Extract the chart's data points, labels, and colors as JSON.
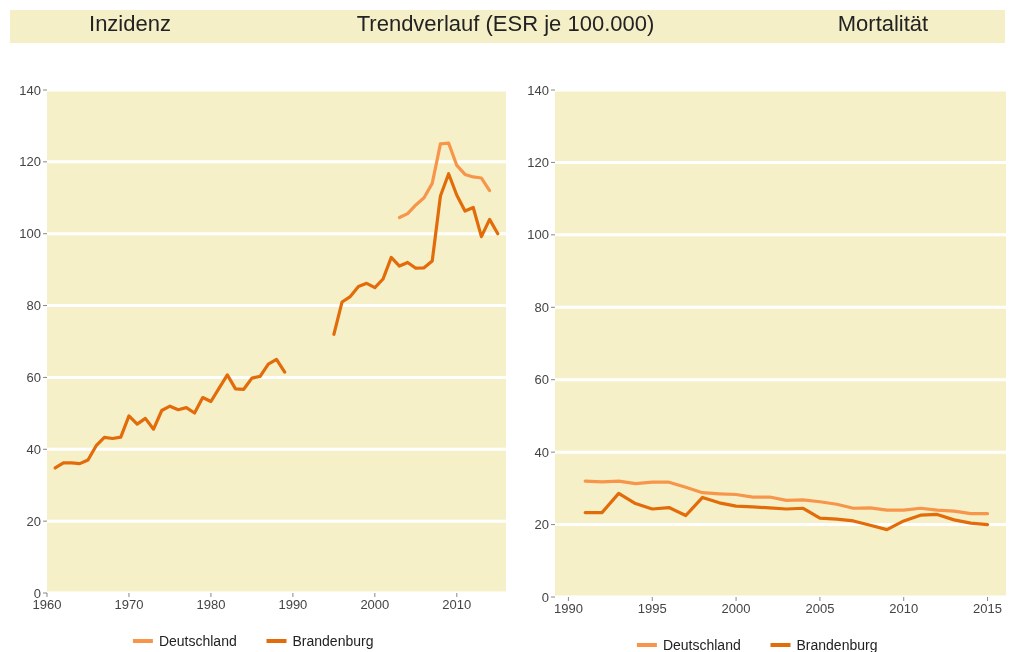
{
  "chart_data": [
    {
      "type": "line",
      "title": "Inzidenz",
      "subtitle": "Trendverlauf (ESR je 100.000)",
      "xlim": [
        1960,
        2016
      ],
      "xticks": [
        1960,
        1970,
        1980,
        1990,
        2000,
        2010
      ],
      "ylim": [
        0,
        140
      ],
      "yticks": [
        0,
        20,
        40,
        60,
        80,
        100,
        120,
        140
      ],
      "grid": "y",
      "legend": "bottom",
      "line_style": "solid",
      "marker": "none",
      "series": [
        {
          "name": "Deutschland",
          "color": "#f7964a",
          "x": [
            2003,
            2004,
            2005,
            2006,
            2007,
            2008,
            2009,
            2010,
            2011,
            2012,
            2013,
            2014
          ],
          "values": [
            104.5,
            105.6,
            108,
            110,
            114,
            125,
            125.2,
            119,
            116.5,
            115.8,
            115.5,
            112
          ]
        },
        {
          "name": "Brandenburg",
          "color": "#e36c0a",
          "x": [
            1961,
            1962,
            1963,
            1964,
            1965,
            1966,
            1967,
            1968,
            1969,
            1970,
            1971,
            1972,
            1973,
            1974,
            1975,
            1976,
            1977,
            1978,
            1979,
            1980,
            1981,
            1982,
            1983,
            1984,
            1985,
            1986,
            1987,
            1988,
            1989,
            1990,
            1991,
            1992,
            1993,
            1994,
            1995,
            1996,
            1997,
            1998,
            1999,
            2000,
            2001,
            2002,
            2003,
            2004,
            2005,
            2006,
            2007,
            2008,
            2009,
            2010,
            2011,
            2012,
            2013,
            2014,
            2015
          ],
          "values": [
            34.8,
            36.2,
            36.2,
            36,
            37,
            41,
            43.3,
            43,
            43.4,
            49.3,
            47,
            48.6,
            45.6,
            50.8,
            52,
            51,
            51.6,
            50.1,
            54.4,
            53.3,
            57,
            60.7,
            56.8,
            56.7,
            59.8,
            60.3,
            63.7,
            65,
            61.5,
            null,
            null,
            null,
            null,
            null,
            72,
            81,
            82.5,
            85.3,
            86.2,
            85,
            87.4,
            93.4,
            91,
            92,
            90.4,
            90.5,
            92.4,
            110.5,
            116.7,
            110.7,
            106.3,
            107.3,
            99.2,
            104,
            100
          ]
        }
      ]
    },
    {
      "type": "line",
      "title": "Mortalität",
      "xlim": [
        1989.2,
        2016.1
      ],
      "xticks": [
        1990,
        1995,
        2000,
        2005,
        2010,
        2015
      ],
      "ylim": [
        0,
        140
      ],
      "yticks": [
        0,
        20,
        40,
        60,
        80,
        100,
        120,
        140
      ],
      "grid": "y",
      "legend": "bottom",
      "line_style": "solid",
      "marker": "none",
      "series": [
        {
          "name": "Deutschland",
          "color": "#f7964a",
          "x": [
            1991,
            1992,
            1993,
            1994,
            1995,
            1996,
            1997,
            1998,
            1999,
            2000,
            2001,
            2002,
            2003,
            2004,
            2005,
            2006,
            2007,
            2008,
            2009,
            2010,
            2011,
            2012,
            2013,
            2014,
            2015
          ],
          "values": [
            32,
            31.8,
            32,
            31.3,
            31.7,
            31.7,
            30.3,
            28.8,
            28.5,
            28.3,
            27.6,
            27.6,
            26.7,
            26.8,
            26.3,
            25.6,
            24.5,
            24.6,
            24,
            24,
            24.5,
            24,
            23.7,
            23,
            23
          ]
        },
        {
          "name": "Brandenburg",
          "color": "#e36c0a",
          "x": [
            1991,
            1992,
            1993,
            1994,
            1995,
            1996,
            1997,
            1998,
            1999,
            2000,
            2001,
            2002,
            2003,
            2004,
            2005,
            2006,
            2007,
            2008,
            2009,
            2010,
            2011,
            2012,
            2013,
            2014,
            2015
          ],
          "values": [
            23.3,
            23.3,
            28.6,
            25.8,
            24.3,
            24.7,
            22.5,
            27.5,
            26,
            25.1,
            24.9,
            24.6,
            24.3,
            24.5,
            21.8,
            21.5,
            21,
            19.8,
            18.6,
            21,
            22.6,
            22.8,
            21.3,
            20.4,
            20
          ]
        }
      ]
    }
  ]
}
